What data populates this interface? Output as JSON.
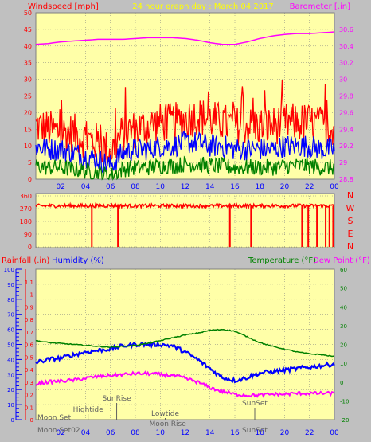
{
  "header": {
    "left_title": "Windspeed [mph]",
    "center_title": "24 hour graph day : March 04 2017",
    "right_title": "Barometer [.in]"
  },
  "colors": {
    "background": "#c0c0c0",
    "plot_bg": "#ffffa8",
    "grid": "#7f7f7f",
    "wind_gust": "#ff0000",
    "wind_avg": "#0000ff",
    "wind_min": "#008000",
    "barometer": "#ff00ff",
    "direction": "#ff0000",
    "humidity": "#0000ff",
    "temperature": "#008000",
    "dewpoint": "#ff00ff",
    "rainfall": "#ff0000",
    "astro": "#606060",
    "left_axis": "#ff0000",
    "right_axis": "#ff00ff",
    "title_center": "#ffff00"
  },
  "time_axis": {
    "ticks": [
      "02",
      "04",
      "06",
      "08",
      "10",
      "12",
      "14",
      "16",
      "18",
      "20",
      "22",
      "00"
    ]
  },
  "chart_data": [
    {
      "type": "line",
      "title": "24 hour graph day : March 04 2017",
      "panel": "wind-barometer",
      "ylabel": "Windspeed [mph]",
      "ylabel_right": "Barometer [.in]",
      "ylim": [
        0,
        50
      ],
      "y_ticks": [
        0,
        5,
        10,
        15,
        20,
        25,
        30,
        35,
        40,
        45,
        50
      ],
      "ylim_right": [
        28.8,
        30.8
      ],
      "y_ticks_right": [
        "28.8",
        "29",
        "29.2",
        "29.4",
        "29.6",
        "29.8",
        "30",
        "30.2",
        "30.4",
        "30.6"
      ],
      "x": [
        0,
        1,
        2,
        3,
        4,
        5,
        6,
        7,
        8,
        9,
        10,
        11,
        12,
        13,
        14,
        15,
        16,
        17,
        18,
        19,
        20,
        21,
        22,
        23,
        24
      ],
      "series": [
        {
          "key": "gust",
          "axis": "left",
          "values": [
            16,
            15,
            14,
            14,
            12,
            11,
            8,
            14,
            15,
            16,
            17,
            17,
            18,
            19,
            18,
            17,
            16,
            16,
            16,
            16,
            17,
            17,
            17,
            16,
            16
          ],
          "spread": 6
        },
        {
          "key": "avg",
          "axis": "left",
          "values": [
            10,
            9,
            9,
            8,
            7,
            6,
            4,
            8,
            9,
            9,
            10,
            10,
            11,
            11,
            10,
            10,
            9,
            9,
            9,
            9,
            10,
            10,
            10,
            9,
            9
          ],
          "spread": 3.5
        },
        {
          "key": "min",
          "axis": "left",
          "values": [
            4,
            3.5,
            3.5,
            3,
            2.5,
            2,
            1,
            3,
            3.5,
            3.5,
            4,
            4,
            4.5,
            4.5,
            4,
            4,
            3.5,
            3.5,
            3.5,
            3.5,
            4,
            4,
            4,
            3.5,
            3.5
          ],
          "spread": 2.5
        },
        {
          "key": "barometer",
          "axis": "right",
          "values": [
            30.42,
            30.43,
            30.45,
            30.46,
            30.47,
            30.48,
            30.48,
            30.48,
            30.49,
            30.5,
            30.5,
            30.5,
            30.49,
            30.47,
            30.44,
            30.42,
            30.42,
            30.45,
            30.49,
            30.52,
            30.54,
            30.55,
            30.55,
            30.56,
            30.57
          ]
        }
      ]
    },
    {
      "type": "line",
      "panel": "wind-direction",
      "y_ticks": [
        0,
        90,
        180,
        270,
        360
      ],
      "ylim": [
        0,
        360
      ],
      "compass_labels": [
        "N",
        "W",
        "S",
        "E",
        "N"
      ],
      "series": [
        {
          "key": "direction",
          "baseline": 290,
          "spread": 25
        },
        {
          "key": "direction-dips",
          "dip_hours": [
            4.5,
            6.6,
            15.6,
            17.3,
            21.4,
            21.9,
            22.6,
            23.3,
            23.6,
            23.9
          ]
        }
      ]
    },
    {
      "type": "line",
      "panel": "humidity-temperature",
      "labels": {
        "rainfall": "Rainfall (.in)",
        "humidity": "Humidity (%)",
        "temperature": "Temperature (°F)",
        "dewpoint": "Dew Point (°F)"
      },
      "ylim_rain": [
        0,
        1.2
      ],
      "y_ticks_rain": [
        "0",
        "0.1",
        "0.2",
        "0.3",
        "0.4",
        "0.5",
        "0.6",
        "0.7",
        "0.8",
        "0.9",
        "1",
        "1.1"
      ],
      "ylim_humidity": [
        0,
        100
      ],
      "y_ticks_humidity": [
        0,
        10,
        20,
        30,
        40,
        50,
        60,
        70,
        80,
        90,
        100
      ],
      "ylim_temp": [
        -20,
        60
      ],
      "y_ticks_temp": [
        -20,
        -10,
        0,
        10,
        20,
        30,
        40,
        50,
        60
      ],
      "x": [
        0,
        1,
        2,
        3,
        4,
        5,
        6,
        7,
        8,
        9,
        10,
        11,
        12,
        13,
        14,
        15,
        16,
        17,
        18,
        19,
        20,
        21,
        22,
        23,
        24
      ],
      "series": [
        {
          "key": "humidity",
          "scale": "humidity",
          "values": [
            38,
            40,
            41,
            43,
            45,
            46,
            47,
            49,
            50,
            50,
            50,
            49,
            45,
            40,
            34,
            28,
            26,
            28,
            31,
            32,
            33,
            34,
            35,
            36,
            37
          ]
        },
        {
          "key": "temperature",
          "scale": "temp",
          "values": [
            22,
            21,
            20.5,
            20,
            19.5,
            19,
            18.5,
            19,
            19.5,
            20.5,
            22,
            23.5,
            25,
            26,
            27.5,
            28,
            27,
            24,
            21,
            19,
            17.5,
            16,
            15,
            14.5,
            13.5
          ]
        },
        {
          "key": "dewpoint",
          "scale": "temp",
          "values": [
            -1,
            0,
            0.5,
            1,
            2,
            3,
            3.5,
            4,
            4.5,
            4.5,
            4,
            3.5,
            2,
            0,
            -3,
            -5,
            -6.5,
            -7,
            -7,
            -6.5,
            -6.5,
            -6,
            -6,
            -6,
            -6
          ]
        }
      ],
      "astro": [
        {
          "label": "Moon Set",
          "hour": 0,
          "row": "top",
          "tick": false
        },
        {
          "label": "Moon Set02",
          "hour": 0.6,
          "row": "bottom",
          "tick": false
        },
        {
          "label": "Hightide",
          "hour": 4.2,
          "row": "mid",
          "tick": true
        },
        {
          "label": "SunRise",
          "hour": 6.5,
          "row": "upper",
          "tick": true
        },
        {
          "label": "Lowtide",
          "hour": 10.4,
          "row": "mid2",
          "tick": true
        },
        {
          "label": "Moon Rise",
          "hour": 10.6,
          "row": "low",
          "tick": false
        },
        {
          "label": "SunSet",
          "hour": 17.6,
          "row": "upper2",
          "tick": true
        },
        {
          "label": "SunSet",
          "hour": 17.6,
          "row": "bottom",
          "tick": false
        }
      ]
    }
  ]
}
